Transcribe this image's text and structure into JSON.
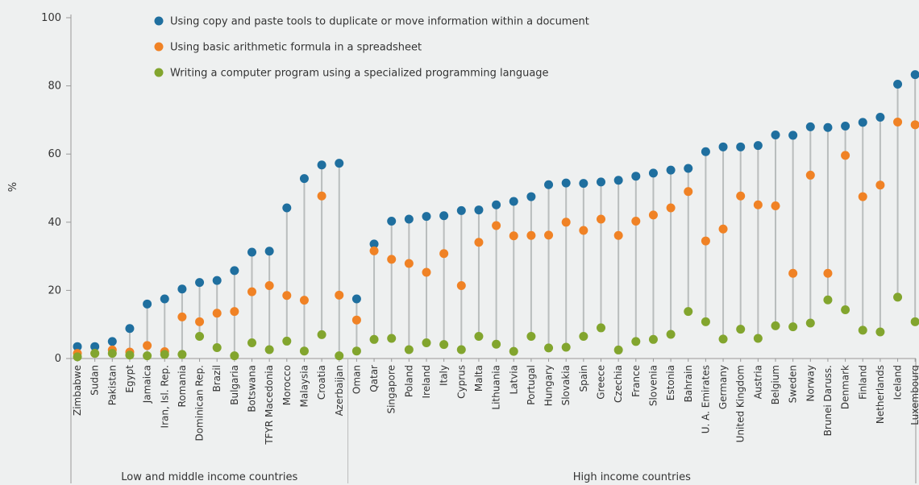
{
  "chart_data": {
    "type": "scatter",
    "ylabel": "%",
    "ylim": [
      0,
      100
    ],
    "yticks": [
      0,
      20,
      40,
      60,
      80,
      100
    ],
    "categories": [
      "Zimbabwe",
      "Sudan",
      "Pakistan",
      "Egypt",
      "Jamaica",
      "Iran, Isl. Rep.",
      "Romania",
      "Dominican Rep.",
      "Brazil",
      "Bulgaria",
      "Botswana",
      "TFYR Macedonia",
      "Morocco",
      "Malaysia",
      "Croatia",
      "Azerbaijan",
      "Oman",
      "Qatar",
      "Singapore",
      "Poland",
      "Ireland",
      "Italy",
      "Cyprus",
      "Malta",
      "Lithuania",
      "Latvia",
      "Portugal",
      "Hungary",
      "Slovakia",
      "Spain",
      "Greece",
      "Czechia",
      "France",
      "Slovenia",
      "Estonia",
      "Bahrain",
      "U. A. Emirates",
      "Germany",
      "United Kingdom",
      "Austria",
      "Belgium",
      "Sweden",
      "Norway",
      "Brunei Daruss.",
      "Denmark",
      "Finland",
      "Netherlands",
      "Iceland",
      "Luxembourg"
    ],
    "groups": [
      {
        "label": "Low and middle income countries",
        "start": 0,
        "end": 15
      },
      {
        "label": "High income countries",
        "start": 16,
        "end": 48
      }
    ],
    "series": [
      {
        "name": "Using copy and paste tools to duplicate or move information within a document",
        "color": "#1f6f9f",
        "values": [
          3.5,
          3.5,
          5,
          8.8,
          16,
          17.5,
          20.4,
          22.3,
          22.9,
          25.8,
          31.2,
          31.5,
          44.2,
          52.8,
          56.8,
          57.3,
          17.5,
          33.6,
          40.3,
          40.9,
          41.7,
          41.9,
          43.4,
          43.6,
          45.1,
          46.1,
          47.5,
          51,
          51.5,
          51.4,
          51.8,
          52.3,
          53.5,
          54.4,
          55.3,
          55.8,
          60.7,
          62.1,
          62.1,
          62.5,
          65.6,
          65.5,
          68,
          67.8,
          68.2,
          69.3,
          70.8,
          80.5,
          83.3
        ]
      },
      {
        "name": "Using basic arithmetic formula in a spreadsheet",
        "color": "#f08225",
        "values": [
          1.5,
          1.5,
          2.5,
          1.9,
          3.8,
          2,
          12.2,
          10.8,
          13.3,
          13.8,
          19.6,
          21.4,
          18.5,
          17.1,
          47.7,
          18.6,
          11.3,
          31.6,
          29.1,
          27.9,
          25.3,
          30.8,
          21.4,
          34.1,
          39,
          36,
          36.1,
          36.2,
          40,
          37.6,
          40.9,
          36.1,
          40.3,
          42.1,
          44.2,
          49,
          34.5,
          38,
          47.7,
          45.1,
          44.8,
          25,
          53.8,
          25,
          59.6,
          47.5,
          50.9,
          69.4,
          68.6
        ]
      },
      {
        "name": "Writing a computer program using a specialized programming language",
        "color": "#82a52e",
        "values": [
          0.5,
          1.5,
          1.5,
          1,
          0.8,
          1.2,
          1.2,
          6.5,
          3.2,
          0.8,
          4.6,
          2.6,
          5.1,
          2.2,
          7,
          0.8,
          2.2,
          5.6,
          5.9,
          2.6,
          4.6,
          4.1,
          2.6,
          6.5,
          4.2,
          2.1,
          6.5,
          3.1,
          3.3,
          6.5,
          9,
          2.5,
          5,
          5.6,
          7.1,
          13.8,
          10.8,
          5.7,
          8.6,
          5.9,
          9.6,
          9.3,
          10.4,
          17.2,
          14.3,
          8.3,
          7.8,
          18,
          10.8
        ]
      }
    ]
  }
}
